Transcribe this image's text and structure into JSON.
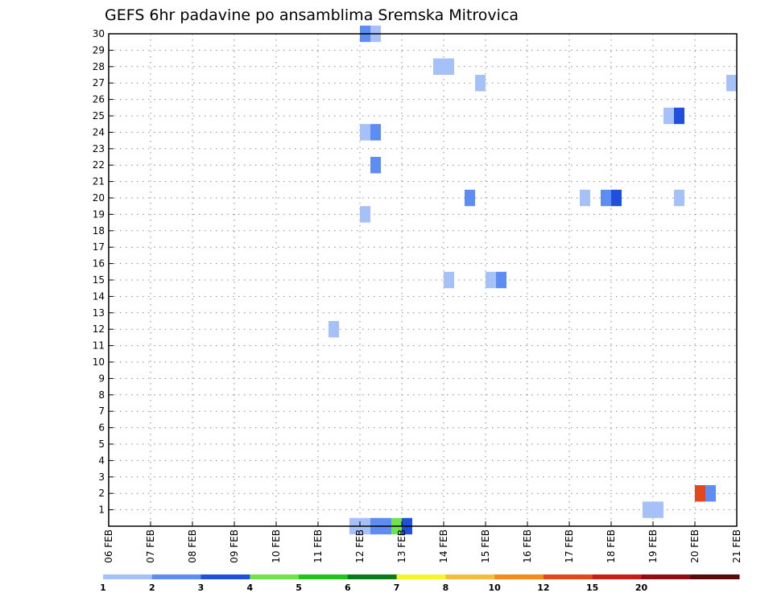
{
  "chart_data": {
    "type": "heatmap",
    "title": "GEFS 6hr padavine po ansamblima Sremska Mitrovica",
    "xlabel": "",
    "ylabel": "",
    "x_tick_labels": [
      "06 FEB",
      "07 FEB",
      "08 FEB",
      "09 FEB",
      "10 FEB",
      "11 FEB",
      "12 FEB",
      "13 FEB",
      "14 FEB",
      "15 FEB",
      "16 FEB",
      "17 FEB",
      "18 FEB",
      "19 FEB",
      "20 FEB",
      "21 FEB"
    ],
    "y_tick_labels": [
      "1",
      "2",
      "3",
      "4",
      "5",
      "6",
      "7",
      "8",
      "9",
      "10",
      "11",
      "12",
      "13",
      "14",
      "15",
      "16",
      "17",
      "18",
      "19",
      "20",
      "21",
      "22",
      "23",
      "24",
      "25",
      "26",
      "27",
      "28",
      "29",
      "30"
    ],
    "xlim_days": [
      0,
      15
    ],
    "ylim_members": [
      0,
      30
    ],
    "grid": true,
    "colorbar": {
      "position": "bottom",
      "colors": [
        "#a6c1f7",
        "#5d8cf2",
        "#1f4fdb",
        "#6fe24e",
        "#21c21b",
        "#0b7a18",
        "#f5f52a",
        "#f5bd3c",
        "#f48a17",
        "#e3471b",
        "#c62016",
        "#8f0d14",
        "#5b0a0a"
      ],
      "labels": [
        "1",
        "2",
        "3",
        "4",
        "5",
        "6",
        "7",
        "8",
        "10",
        "12",
        "15",
        "20"
      ],
      "label_boundaries": [
        0,
        1,
        2,
        3,
        4,
        5,
        6,
        7,
        8,
        9,
        10,
        11
      ]
    },
    "cells": [
      {
        "day": 6.0,
        "member": 30,
        "level": 2
      },
      {
        "day": 6.25,
        "member": 30,
        "level": 1
      },
      {
        "day": 7.75,
        "member": 28,
        "level": 1
      },
      {
        "day": 8.0,
        "member": 28,
        "level": 1
      },
      {
        "day": 8.75,
        "member": 27,
        "level": 1
      },
      {
        "day": 14.75,
        "member": 27,
        "level": 1
      },
      {
        "day": 13.25,
        "member": 25,
        "level": 1
      },
      {
        "day": 13.5,
        "member": 25,
        "level": 3
      },
      {
        "day": 6.0,
        "member": 24,
        "level": 1
      },
      {
        "day": 6.25,
        "member": 24,
        "level": 2
      },
      {
        "day": 6.25,
        "member": 22,
        "level": 2
      },
      {
        "day": 8.5,
        "member": 20,
        "level": 2
      },
      {
        "day": 11.25,
        "member": 20,
        "level": 1
      },
      {
        "day": 11.75,
        "member": 20,
        "level": 2
      },
      {
        "day": 12.0,
        "member": 20,
        "level": 3
      },
      {
        "day": 13.5,
        "member": 20,
        "level": 1
      },
      {
        "day": 6.0,
        "member": 19,
        "level": 1
      },
      {
        "day": 8.0,
        "member": 15,
        "level": 1
      },
      {
        "day": 9.0,
        "member": 15,
        "level": 1
      },
      {
        "day": 9.25,
        "member": 15,
        "level": 2
      },
      {
        "day": 5.25,
        "member": 12,
        "level": 1
      },
      {
        "day": 14.0,
        "member": 2,
        "level": 10
      },
      {
        "day": 14.25,
        "member": 2,
        "level": 2
      },
      {
        "day": 12.75,
        "member": 1,
        "level": 1
      },
      {
        "day": 13.0,
        "member": 1,
        "level": 1
      },
      {
        "day": 5.75,
        "member": 0,
        "level": 1
      },
      {
        "day": 6.0,
        "member": 0,
        "level": 1
      },
      {
        "day": 6.25,
        "member": 0,
        "level": 2
      },
      {
        "day": 6.5,
        "member": 0,
        "level": 2
      },
      {
        "day": 6.75,
        "member": 0,
        "level": 4
      },
      {
        "day": 7.0,
        "member": 0,
        "level": 3
      }
    ]
  }
}
